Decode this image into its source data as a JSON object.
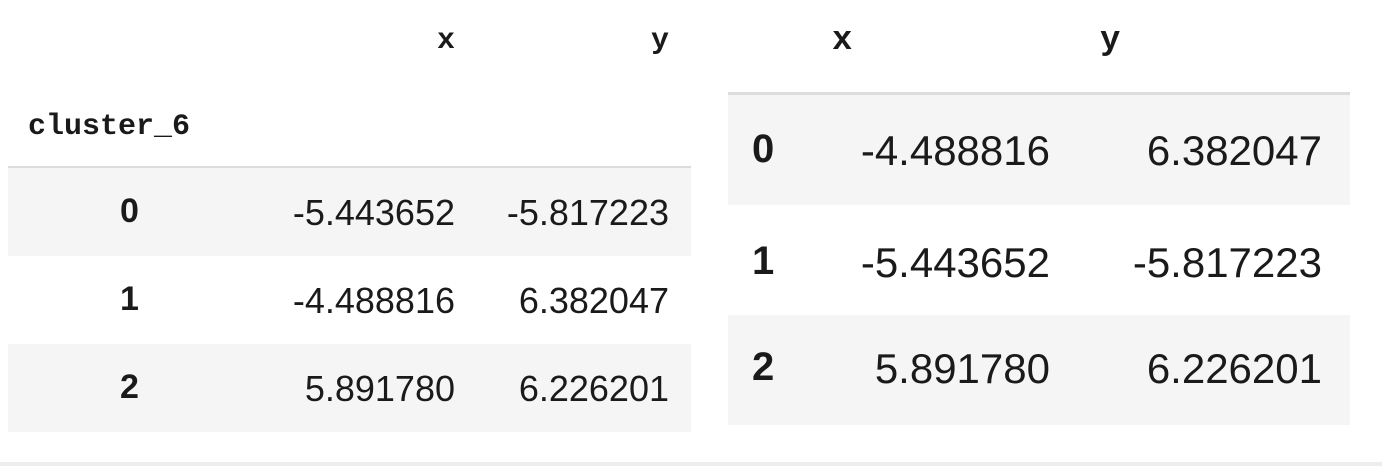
{
  "left_table": {
    "index_name": "cluster_6",
    "columns": [
      "x",
      "y"
    ],
    "rows": [
      {
        "index": "0",
        "x": "-5.443652",
        "y": "-5.817223"
      },
      {
        "index": "1",
        "x": "-4.488816",
        "y": "6.382047"
      },
      {
        "index": "2",
        "x": "5.891780",
        "y": "6.226201"
      }
    ]
  },
  "right_table": {
    "columns": [
      "x",
      "y"
    ],
    "rows": [
      {
        "index": "0",
        "x": "-4.488816",
        "y": "6.382047"
      },
      {
        "index": "1",
        "x": "-5.443652",
        "y": "-5.817223"
      },
      {
        "index": "2",
        "x": "5.891780",
        "y": "6.226201"
      }
    ]
  }
}
